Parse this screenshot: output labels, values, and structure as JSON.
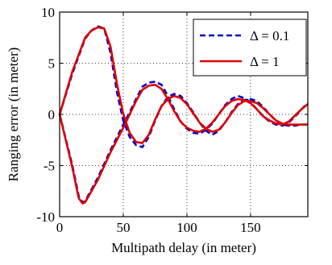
{
  "chart_data": {
    "type": "line",
    "xlabel": "Multipath delay (in meter)",
    "ylabel": "Ranging error (in meter)",
    "xlim": [
      0,
      195
    ],
    "ylim": [
      -10,
      10
    ],
    "xticks": [
      0,
      50,
      100,
      150
    ],
    "yticks": [
      -10,
      -5,
      0,
      5,
      10
    ],
    "grid": true,
    "legend_position": "top-right",
    "series": [
      {
        "name": "Δ = 0.1",
        "color": "#0000cc",
        "style": "dashed",
        "upper": [
          [
            0,
            0
          ],
          [
            10,
            4.0
          ],
          [
            20,
            7.4
          ],
          [
            25,
            8.2
          ],
          [
            30,
            8.6
          ],
          [
            35,
            8.4
          ],
          [
            40,
            6.0
          ],
          [
            45,
            2.2
          ],
          [
            50,
            -0.6
          ],
          [
            55,
            -2.2
          ],
          [
            60,
            -3.0
          ],
          [
            65,
            -3.2
          ],
          [
            70,
            -2.2
          ],
          [
            75,
            -0.6
          ],
          [
            80,
            0.8
          ],
          [
            85,
            1.7
          ],
          [
            90,
            2.0
          ],
          [
            95,
            1.8
          ],
          [
            100,
            1.1
          ],
          [
            105,
            0.2
          ],
          [
            110,
            -0.8
          ],
          [
            115,
            -1.6
          ],
          [
            120,
            -2.0
          ],
          [
            125,
            -1.6
          ],
          [
            130,
            -0.8
          ],
          [
            135,
            0.2
          ],
          [
            140,
            1.0
          ],
          [
            145,
            1.4
          ],
          [
            150,
            1.5
          ],
          [
            155,
            1.3
          ],
          [
            160,
            0.7
          ],
          [
            165,
            0.0
          ],
          [
            170,
            -0.6
          ],
          [
            175,
            -1.0
          ],
          [
            180,
            -1.1
          ],
          [
            185,
            -1.1
          ],
          [
            190,
            -1.0
          ],
          [
            195,
            -1.0
          ]
        ],
        "lower": [
          [
            0,
            0
          ],
          [
            10,
            -5.0
          ],
          [
            15,
            -8.0
          ],
          [
            18,
            -8.6
          ],
          [
            20,
            -8.5
          ],
          [
            30,
            -6.2
          ],
          [
            40,
            -3.5
          ],
          [
            50,
            -1.0
          ],
          [
            55,
            0.2
          ],
          [
            60,
            1.5
          ],
          [
            65,
            2.7
          ],
          [
            70,
            3.1
          ],
          [
            75,
            3.2
          ],
          [
            80,
            2.9
          ],
          [
            85,
            1.8
          ],
          [
            90,
            0.5
          ],
          [
            95,
            -0.7
          ],
          [
            100,
            -1.4
          ],
          [
            105,
            -1.8
          ],
          [
            110,
            -1.9
          ],
          [
            115,
            -1.5
          ],
          [
            120,
            -0.9
          ],
          [
            125,
            0.0
          ],
          [
            130,
            0.9
          ],
          [
            135,
            1.5
          ],
          [
            140,
            1.8
          ],
          [
            145,
            1.6
          ],
          [
            150,
            1.2
          ],
          [
            155,
            0.5
          ],
          [
            160,
            -0.2
          ],
          [
            165,
            -0.7
          ],
          [
            170,
            -1.0
          ],
          [
            175,
            -1.1
          ],
          [
            180,
            -0.8
          ],
          [
            185,
            -0.2
          ],
          [
            190,
            0.5
          ],
          [
            195,
            1.1
          ]
        ]
      },
      {
        "name": "Δ = 1",
        "color": "#dd0000",
        "style": "solid",
        "upper": [
          [
            0,
            0
          ],
          [
            10,
            4.2
          ],
          [
            20,
            7.5
          ],
          [
            25,
            8.2
          ],
          [
            30,
            8.5
          ],
          [
            35,
            8.4
          ],
          [
            40,
            6.6
          ],
          [
            45,
            3.0
          ],
          [
            50,
            0.0
          ],
          [
            55,
            -1.8
          ],
          [
            60,
            -2.7
          ],
          [
            65,
            -2.8
          ],
          [
            70,
            -2.0
          ],
          [
            75,
            -0.5
          ],
          [
            80,
            0.8
          ],
          [
            85,
            1.5
          ],
          [
            90,
            1.8
          ],
          [
            95,
            1.6
          ],
          [
            100,
            1.0
          ],
          [
            105,
            0.1
          ],
          [
            110,
            -0.8
          ],
          [
            115,
            -1.4
          ],
          [
            120,
            -1.7
          ],
          [
            125,
            -1.5
          ],
          [
            130,
            -0.8
          ],
          [
            135,
            0.1
          ],
          [
            140,
            0.9
          ],
          [
            145,
            1.3
          ],
          [
            150,
            1.3
          ],
          [
            155,
            1.1
          ],
          [
            160,
            0.6
          ],
          [
            165,
            0.0
          ],
          [
            170,
            -0.6
          ],
          [
            175,
            -0.9
          ],
          [
            180,
            -1.0
          ],
          [
            185,
            -1.0
          ],
          [
            190,
            -1.0
          ],
          [
            195,
            -1.0
          ]
        ],
        "lower": [
          [
            0,
            0
          ],
          [
            10,
            -5.2
          ],
          [
            15,
            -8.2
          ],
          [
            18,
            -8.7
          ],
          [
            20,
            -8.6
          ],
          [
            30,
            -6.4
          ],
          [
            40,
            -3.7
          ],
          [
            50,
            -1.3
          ],
          [
            55,
            0.0
          ],
          [
            60,
            1.3
          ],
          [
            65,
            2.4
          ],
          [
            70,
            2.8
          ],
          [
            75,
            2.9
          ],
          [
            80,
            2.5
          ],
          [
            85,
            1.5
          ],
          [
            90,
            0.3
          ],
          [
            95,
            -0.7
          ],
          [
            100,
            -1.3
          ],
          [
            105,
            -1.6
          ],
          [
            110,
            -1.7
          ],
          [
            115,
            -1.4
          ],
          [
            120,
            -0.8
          ],
          [
            125,
            0.0
          ],
          [
            130,
            0.8
          ],
          [
            135,
            1.3
          ],
          [
            140,
            1.5
          ],
          [
            145,
            1.4
          ],
          [
            150,
            1.1
          ],
          [
            155,
            0.5
          ],
          [
            160,
            -0.2
          ],
          [
            165,
            -0.6
          ],
          [
            170,
            -0.9
          ],
          [
            175,
            -1.0
          ],
          [
            180,
            -0.7
          ],
          [
            185,
            -0.1
          ],
          [
            190,
            0.5
          ],
          [
            195,
            1.0
          ]
        ]
      }
    ]
  }
}
